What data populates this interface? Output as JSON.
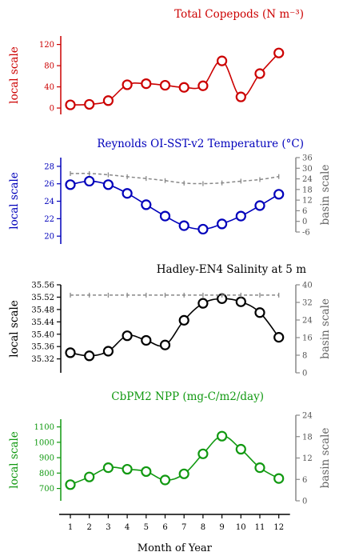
{
  "xaxis": {
    "label": "Month of Year",
    "ticks": [
      1,
      2,
      3,
      4,
      5,
      6,
      7,
      8,
      9,
      10,
      11,
      12
    ]
  },
  "chart_data": [
    {
      "type": "line",
      "title": "Total Copepods (N m⁻³)",
      "color": "#cc0000",
      "ylabel_left": "local scale",
      "ylabel_right": "",
      "ylim": [
        -12,
        136
      ],
      "yticks": [
        0,
        40,
        80,
        120
      ],
      "x": [
        1,
        2,
        3,
        4,
        5,
        6,
        7,
        8,
        9,
        10,
        11,
        12
      ],
      "series": [
        {
          "name": "local",
          "values": [
            6,
            7,
            14,
            44,
            46,
            43,
            39,
            42,
            89,
            21,
            65,
            104
          ]
        }
      ]
    },
    {
      "type": "line",
      "title": "Reynolds OI-SST-v2 Temperature (°C)",
      "color": "#0000bb",
      "basin_color": "#888888",
      "ylabel_left": "local scale",
      "ylabel_right": "basin scale",
      "ylim": [
        19.1,
        29.0
      ],
      "yticks": [
        20,
        22,
        24,
        26,
        28
      ],
      "y2lim": [
        -6,
        36
      ],
      "y2ticks": [
        -6,
        0,
        6,
        12,
        18,
        24,
        30,
        36
      ],
      "x": [
        1,
        2,
        3,
        4,
        5,
        6,
        7,
        8,
        9,
        10,
        11,
        12
      ],
      "series": [
        {
          "name": "local",
          "values": [
            25.9,
            26.3,
            25.9,
            24.9,
            23.6,
            22.3,
            21.2,
            20.8,
            21.4,
            22.3,
            23.5,
            24.8
          ]
        },
        {
          "name": "basin",
          "axis": "right",
          "values": [
            27.0,
            27.0,
            26.3,
            25.2,
            24.2,
            23.0,
            21.6,
            21.3,
            21.7,
            22.7,
            23.6,
            25.3
          ]
        }
      ]
    },
    {
      "type": "line",
      "title": "Hadley-EN4 Salinity at 5 m",
      "color": "#000000",
      "basin_color": "#888888",
      "ylabel_left": "local scale",
      "ylabel_right": "basin scale",
      "ylim": [
        35.275,
        35.56
      ],
      "yticks": [
        35.32,
        35.36,
        35.4,
        35.44,
        35.48,
        35.52,
        35.56
      ],
      "ytick_decimals": 2,
      "y2lim": [
        0,
        40
      ],
      "y2ticks": [
        0,
        8,
        16,
        24,
        32,
        40
      ],
      "x": [
        1,
        2,
        3,
        4,
        5,
        6,
        7,
        8,
        9,
        10,
        11,
        12
      ],
      "series": [
        {
          "name": "local",
          "values": [
            35.34,
            35.33,
            35.345,
            35.395,
            35.38,
            35.365,
            35.445,
            35.5,
            35.515,
            35.505,
            35.47,
            35.39
          ]
        },
        {
          "name": "basin",
          "axis": "right",
          "values": [
            35.3,
            35.3,
            35.3,
            35.3,
            35.3,
            35.3,
            35.3,
            35.3,
            35.3,
            35.3,
            35.3,
            35.3
          ]
        }
      ]
    },
    {
      "type": "line",
      "title": "CbPM2 NPP (mg-C/m2/day)",
      "color": "#119911",
      "basin_color": "#888888",
      "ylabel_left": "local scale",
      "ylabel_right": "basin scale",
      "ylim": [
        620,
        1150
      ],
      "yticks": [
        700,
        800,
        900,
        1000,
        1100
      ],
      "y2lim": [
        0,
        24
      ],
      "y2ticks": [
        0,
        6,
        12,
        18,
        24
      ],
      "x": [
        1,
        2,
        3,
        4,
        5,
        6,
        7,
        8,
        9,
        10,
        11,
        12
      ],
      "series": [
        {
          "name": "local",
          "values": [
            725,
            775,
            835,
            825,
            810,
            755,
            795,
            925,
            1040,
            955,
            835,
            765
          ]
        }
      ]
    }
  ]
}
